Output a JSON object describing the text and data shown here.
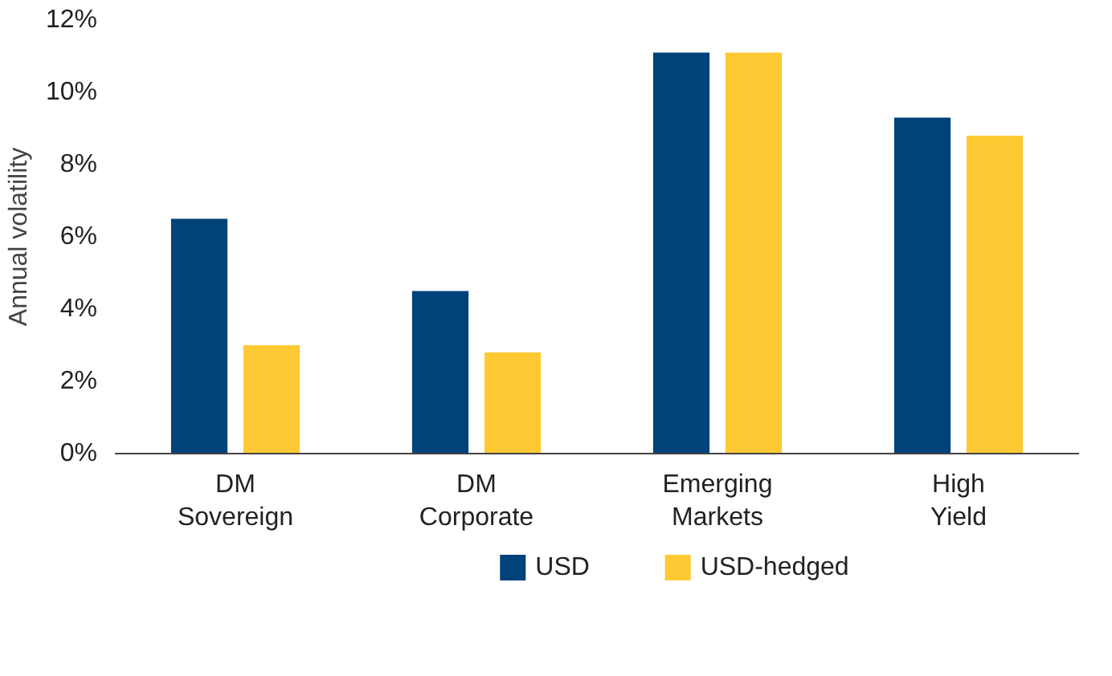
{
  "chart_data": {
    "type": "bar",
    "ylabel": "Annual volatility",
    "categories": [
      "DM Sovereign",
      "DM Corporate",
      "Emerging Markets",
      "High Yield"
    ],
    "series": [
      {
        "name": "USD",
        "color": "#00427a",
        "values": [
          6.5,
          4.5,
          11.1,
          9.3
        ]
      },
      {
        "name": "USD-hedged",
        "color": "#ffc934",
        "values": [
          3.0,
          2.8,
          11.1,
          8.8
        ]
      }
    ],
    "ylim": [
      0,
      12
    ],
    "yticks": [
      {
        "value": 0,
        "label": "0%"
      },
      {
        "value": 2,
        "label": "2%"
      },
      {
        "value": 4,
        "label": "4%"
      },
      {
        "value": 6,
        "label": "6%"
      },
      {
        "value": 8,
        "label": "8%"
      },
      {
        "value": 10,
        "label": "10%"
      },
      {
        "value": 12,
        "label": "12%"
      }
    ],
    "grid": false,
    "legend": "bottom"
  }
}
